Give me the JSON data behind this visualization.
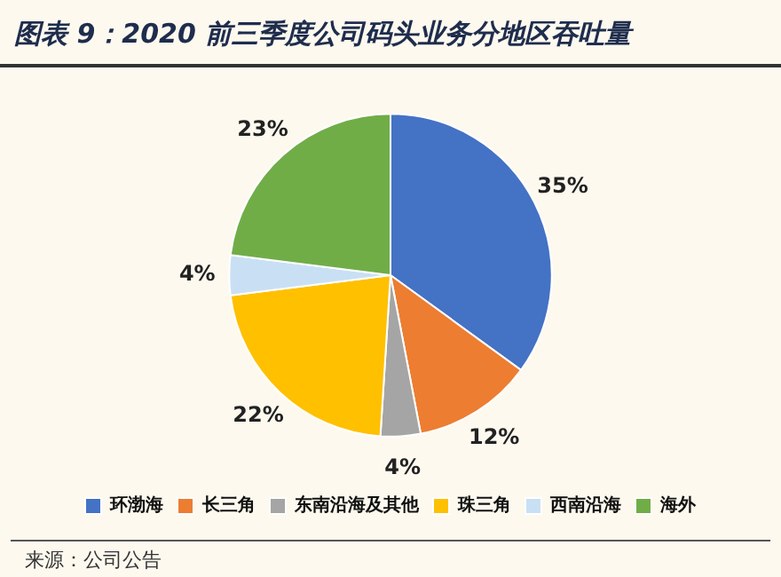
{
  "chart_data": {
    "type": "pie",
    "title": "图表 9：2020 前三季度公司码头业务分地区吞吐量",
    "categories": [
      "环渤海",
      "长三角",
      "东南沿海及其他",
      "珠三角",
      "西南沿海",
      "海外"
    ],
    "values": [
      35,
      12,
      4,
      22,
      4,
      23
    ],
    "value_labels": [
      "35%",
      "12%",
      "4%",
      "22%",
      "4%",
      "23%"
    ],
    "colors": [
      "#4472c4",
      "#ed7d31",
      "#a5a5a5",
      "#ffc000",
      "#c9e0f4",
      "#70ad47"
    ],
    "legend": "bottom",
    "annotations": [
      "来源：公司公告"
    ]
  }
}
